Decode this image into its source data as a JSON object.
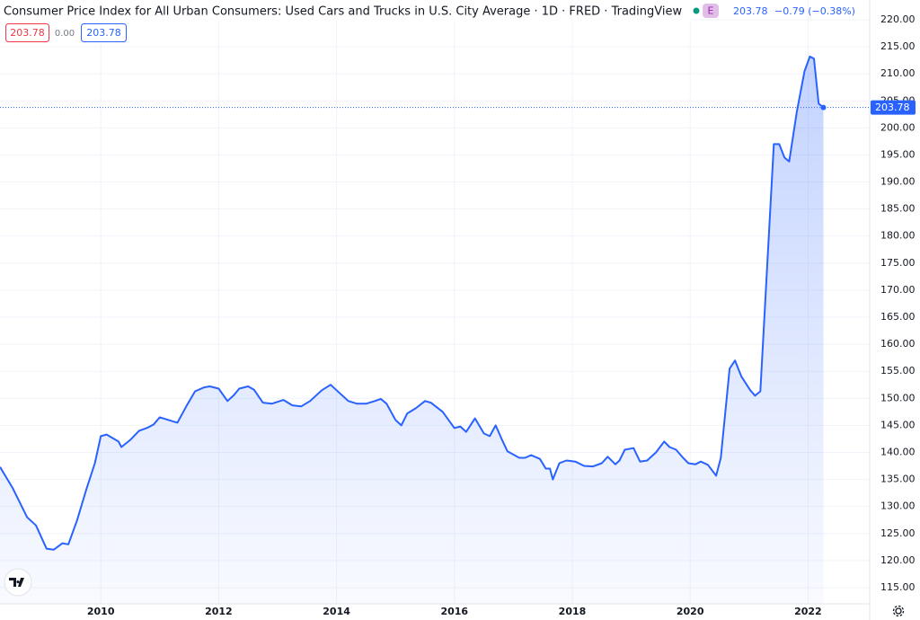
{
  "header": {
    "title": "Consumer Price Index for All Urban Consumers: Used Cars and Trucks in U.S. City Average · 1D · FRED · TradingView",
    "badge": "E",
    "last": "203.78",
    "change": "−0.79 (−0.38%)",
    "bid": "203.78",
    "spread": "0.00",
    "ask": "203.78"
  },
  "chart_data": {
    "type": "area",
    "x": [
      2008.29,
      2008.5,
      2008.75,
      2008.9,
      2009.08,
      2009.2,
      2009.35,
      2009.45,
      2009.6,
      2009.75,
      2009.9,
      2010.0,
      2010.1,
      2010.3,
      2010.35,
      2010.5,
      2010.65,
      2010.8,
      2010.9,
      2011.0,
      2011.15,
      2011.3,
      2011.45,
      2011.6,
      2011.75,
      2011.85,
      2012.0,
      2012.15,
      2012.25,
      2012.35,
      2012.5,
      2012.6,
      2012.75,
      2012.9,
      2013.1,
      2013.25,
      2013.4,
      2013.55,
      2013.75,
      2013.9,
      2014.05,
      2014.2,
      2014.35,
      2014.5,
      2014.65,
      2014.75,
      2014.85,
      2015.0,
      2015.1,
      2015.2,
      2015.35,
      2015.5,
      2015.6,
      2015.8,
      2016.0,
      2016.1,
      2016.2,
      2016.3,
      2016.35,
      2016.5,
      2016.6,
      2016.7,
      2016.8,
      2016.9,
      2017.1,
      2017.2,
      2017.3,
      2017.45,
      2017.55,
      2017.62,
      2017.67,
      2017.78,
      2017.9,
      2018.05,
      2018.2,
      2018.35,
      2018.5,
      2018.6,
      2018.73,
      2018.8,
      2018.89,
      2019.04,
      2019.15,
      2019.27,
      2019.42,
      2019.56,
      2019.65,
      2019.76,
      2019.88,
      2019.97,
      2020.09,
      2020.18,
      2020.3,
      2020.44,
      2020.52,
      2020.67,
      2020.76,
      2020.87,
      2021.02,
      2021.1,
      2021.19,
      2021.33,
      2021.42,
      2021.51,
      2021.6,
      2021.68,
      2021.81,
      2021.94,
      2022.03,
      2022.1,
      2022.18,
      2022.26
    ],
    "series": [
      {
        "color": "#2962ff",
        "values": [
          137.3,
          133.5,
          128,
          126.5,
          122.2,
          122,
          123.2,
          123,
          127.5,
          133,
          138,
          143,
          143.3,
          142,
          141,
          142.3,
          144,
          144.6,
          145.2,
          146.5,
          146,
          145.5,
          148.5,
          151.3,
          152,
          152.2,
          151.8,
          149.5,
          150.5,
          151.8,
          152.2,
          151.6,
          149.2,
          149,
          149.7,
          148.7,
          148.5,
          149.5,
          151.5,
          152.5,
          151,
          149.5,
          149,
          149,
          149.5,
          149.9,
          149,
          146,
          145,
          147.2,
          148.2,
          149.5,
          149.2,
          147.5,
          144.5,
          144.8,
          143.8,
          145.5,
          146.3,
          143.5,
          143,
          145,
          142.5,
          140.2,
          139,
          139,
          139.5,
          138.8,
          137,
          137,
          135,
          138,
          138.5,
          138.3,
          137.5,
          137.4,
          138,
          139.2,
          137.8,
          138.5,
          140.5,
          140.8,
          138.3,
          138.5,
          140,
          142,
          141,
          140.5,
          139,
          138,
          137.8,
          138.3,
          137.7,
          135.7,
          139,
          155.5,
          157,
          154,
          151.5,
          150.5,
          151.3,
          179,
          197,
          197,
          194.5,
          193.8,
          203,
          210.5,
          213.2,
          212.8,
          204.5,
          203.78
        ]
      }
    ],
    "xlim": [
      2008.29,
      2023.0
    ],
    "xticks": [
      2010,
      2012,
      2014,
      2016,
      2018,
      2020,
      2022
    ],
    "ylim": [
      112,
      223.65
    ],
    "yticks": [
      {
        "value": 115,
        "label": "115.00"
      },
      {
        "value": 120,
        "label": "120.00"
      },
      {
        "value": 125,
        "label": "125.00"
      },
      {
        "value": 130,
        "label": "130.00"
      },
      {
        "value": 135,
        "label": "135.00"
      },
      {
        "value": 140,
        "label": "140.00"
      },
      {
        "value": 145,
        "label": "145.00"
      },
      {
        "value": 150,
        "label": "150.00"
      },
      {
        "value": 155,
        "label": "155.00"
      },
      {
        "value": 160,
        "label": "160.00"
      },
      {
        "value": 165,
        "label": "165.00"
      },
      {
        "value": 170,
        "label": "170.00"
      },
      {
        "value": 175,
        "label": "175.00"
      },
      {
        "value": 180,
        "label": "180.00"
      },
      {
        "value": 185,
        "label": "185.00"
      },
      {
        "value": 190,
        "label": "190.00"
      },
      {
        "value": 195,
        "label": "195.00"
      },
      {
        "value": 200,
        "label": "200.00"
      },
      {
        "value": 205,
        "label": "205.00"
      },
      {
        "value": 210,
        "label": "210.00"
      },
      {
        "value": 215,
        "label": "215.00"
      },
      {
        "value": 220,
        "label": "220.00"
      }
    ],
    "grid": true
  }
}
